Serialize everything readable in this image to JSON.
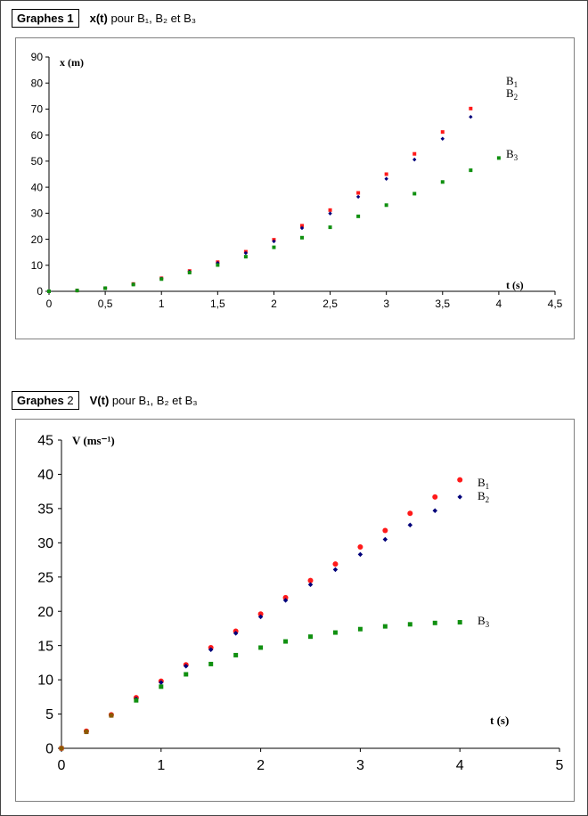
{
  "page": {
    "graph1_header": {
      "tag_word": "Graphes",
      "tag_num": "1",
      "title_bold": "x(t)",
      "title_rest": " pour B₁, B₂ et B₃"
    },
    "graph2_header": {
      "tag_word": "Graphes",
      "tag_num": "2",
      "title_bold": "V(t)",
      "title_rest": " pour B₁, B₂ et B₃"
    }
  },
  "colors": {
    "B1": "#ff1a1a",
    "B2": "#00007a",
    "B3": "#109010",
    "B3_dot_at_origin_v": "#8b5a00"
  },
  "chart_data": [
    {
      "type": "scatter",
      "title": "x(t) pour B₁, B₂ et B₃",
      "xlabel": "t (s)",
      "ylabel": "x (m)",
      "xlim": [
        0,
        4.5
      ],
      "ylim": [
        0,
        90
      ],
      "xticks": [
        "0",
        "0,5",
        "1",
        "1,5",
        "2",
        "2,5",
        "3",
        "3,5",
        "4",
        "4,5"
      ],
      "yticks": [
        "0",
        "10",
        "20",
        "30",
        "40",
        "50",
        "60",
        "70",
        "80",
        "90"
      ],
      "legend": [
        {
          "name": "B1",
          "text": "B",
          "sub": "1"
        },
        {
          "name": "B2",
          "text": "B",
          "sub": "2"
        },
        {
          "name": "B3",
          "text": "B",
          "sub": "3"
        }
      ],
      "series": [
        {
          "name": "B1",
          "marker": "square",
          "x": [
            0,
            0.25,
            0.5,
            0.75,
            1,
            1.25,
            1.5,
            1.75,
            2,
            2.25,
            2.5,
            2.75,
            3,
            3.25,
            3.5,
            3.75
          ],
          "y": [
            0,
            0.3,
            1.2,
            2.8,
            5,
            7.8,
            11.2,
            15.2,
            19.8,
            25.2,
            31.2,
            37.8,
            45,
            52.8,
            61.2,
            70.2
          ]
        },
        {
          "name": "B2",
          "marker": "diamond",
          "x": [
            0,
            0.25,
            0.5,
            0.75,
            1,
            1.25,
            1.5,
            1.75,
            2,
            2.25,
            2.5,
            2.75,
            3,
            3.25,
            3.5,
            3.75
          ],
          "y": [
            0,
            0.3,
            1.2,
            2.7,
            4.9,
            7.6,
            10.9,
            14.7,
            19.2,
            24.3,
            29.9,
            36.3,
            43.2,
            50.6,
            58.6,
            67
          ]
        },
        {
          "name": "B3",
          "marker": "square",
          "x": [
            0,
            0.25,
            0.5,
            0.75,
            1,
            1.25,
            1.5,
            1.75,
            2,
            2.25,
            2.5,
            2.75,
            3,
            3.25,
            3.5,
            3.75,
            4
          ],
          "y": [
            0,
            0.3,
            1.2,
            2.6,
            4.7,
            7.2,
            10.1,
            13.3,
            16.9,
            20.6,
            24.6,
            28.8,
            33.1,
            37.5,
            42,
            46.5,
            51.2
          ]
        }
      ]
    },
    {
      "type": "scatter",
      "title": "V(t) pour B₁, B₂ et B₃",
      "xlabel": "t (s)",
      "ylabel": "V (ms⁻¹)",
      "xlim": [
        0,
        5
      ],
      "ylim": [
        0,
        45
      ],
      "xticks": [
        "0",
        "1",
        "2",
        "3",
        "4",
        "5"
      ],
      "yticks": [
        "0",
        "5",
        "10",
        "15",
        "20",
        "25",
        "30",
        "35",
        "40",
        "45"
      ],
      "legend": [
        {
          "name": "B1",
          "text": "B",
          "sub": "1"
        },
        {
          "name": "B2",
          "text": "B",
          "sub": "2"
        },
        {
          "name": "B3",
          "text": "B",
          "sub": "3"
        }
      ],
      "series": [
        {
          "name": "B1",
          "marker": "circle",
          "x": [
            0,
            0.25,
            0.5,
            0.75,
            1,
            1.25,
            1.5,
            1.75,
            2,
            2.25,
            2.5,
            2.75,
            3,
            3.25,
            3.5,
            3.75,
            4
          ],
          "y": [
            0,
            2.5,
            4.9,
            7.4,
            9.8,
            12.2,
            14.7,
            17.1,
            19.6,
            22,
            24.5,
            26.9,
            29.4,
            31.8,
            34.3,
            36.7,
            39.2
          ]
        },
        {
          "name": "B2",
          "marker": "diamond",
          "x": [
            0,
            0.25,
            0.5,
            0.75,
            1,
            1.25,
            1.5,
            1.75,
            2,
            2.25,
            2.5,
            2.75,
            3,
            3.25,
            3.5,
            3.75,
            4
          ],
          "y": [
            0,
            2.4,
            4.8,
            7.2,
            9.6,
            12,
            14.4,
            16.8,
            19.2,
            21.6,
            23.9,
            26.1,
            28.3,
            30.5,
            32.6,
            34.7,
            36.7
          ]
        },
        {
          "name": "B3",
          "marker": "square",
          "x": [
            0,
            0.25,
            0.5,
            0.75,
            1,
            1.25,
            1.5,
            1.75,
            2,
            2.25,
            2.5,
            2.75,
            3,
            3.25,
            3.5,
            3.75,
            4
          ],
          "y": [
            0,
            2.4,
            4.8,
            7,
            9,
            10.8,
            12.3,
            13.6,
            14.7,
            15.6,
            16.3,
            16.9,
            17.4,
            17.8,
            18.1,
            18.3,
            18.4
          ]
        }
      ]
    }
  ]
}
